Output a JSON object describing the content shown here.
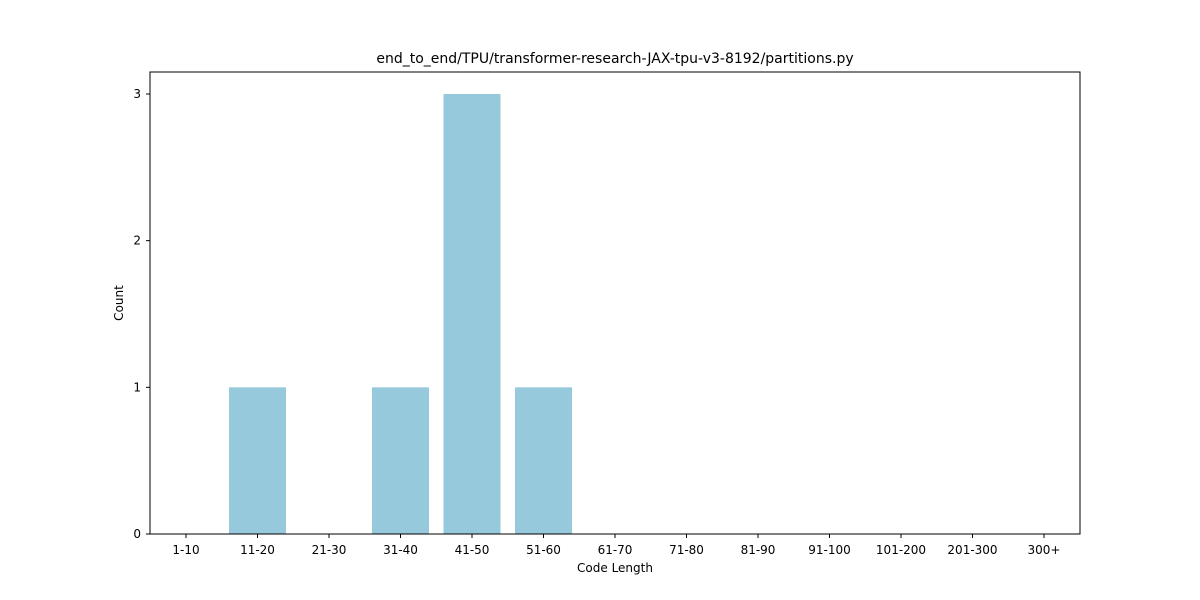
{
  "chart_data": {
    "type": "bar",
    "title": "end_to_end/TPU/transformer-research-JAX-tpu-v3-8192/partitions.py",
    "xlabel": "Code Length",
    "ylabel": "Count",
    "categories": [
      "1-10",
      "11-20",
      "21-30",
      "31-40",
      "41-50",
      "51-60",
      "61-70",
      "71-80",
      "81-90",
      "91-100",
      "101-200",
      "201-300",
      "300+"
    ],
    "values": [
      0,
      1,
      0,
      1,
      3,
      1,
      0,
      0,
      0,
      0,
      0,
      0,
      0
    ],
    "ylim": [
      0,
      3.15
    ],
    "yticks": [
      0,
      1,
      2,
      3
    ],
    "bar_color": "#96c9dc",
    "grid": false,
    "legend": "none"
  }
}
